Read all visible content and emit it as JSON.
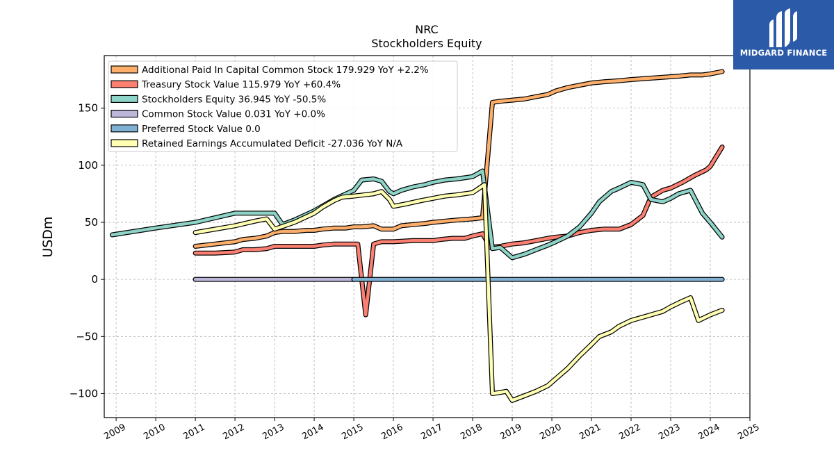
{
  "chart_data": {
    "type": "line",
    "title": "NRC",
    "subtitle": "Stockholders  Equity",
    "ylabel": "USDm",
    "xlabel": "",
    "xlim": [
      2008.7,
      2025.0
    ],
    "ylim": [
      -121,
      196
    ],
    "grid": true,
    "legend_position": "top-left",
    "x_ticks": [
      "2009",
      "2010",
      "2011",
      "2012",
      "2013",
      "2014",
      "2015",
      "2016",
      "2017",
      "2018",
      "2019",
      "2020",
      "2021",
      "2022",
      "2023",
      "2024",
      "2025"
    ],
    "y_ticks": [
      -100,
      -50,
      0,
      50,
      100,
      150
    ],
    "y_tick_labels": [
      "−100",
      "−50",
      "0",
      "50",
      "100",
      "150"
    ],
    "series": [
      {
        "name": "Additional Paid In Capital Common Stock",
        "legend": "Additional Paid In Capital Common Stock  179.929 YoY +2.2%",
        "color": "#fdae6b",
        "points": [
          [
            2011.0,
            29
          ],
          [
            2011.5,
            31
          ],
          [
            2012.0,
            33
          ],
          [
            2012.2,
            35
          ],
          [
            2012.5,
            36
          ],
          [
            2012.8,
            38
          ],
          [
            2013.0,
            41
          ],
          [
            2013.2,
            42
          ],
          [
            2013.5,
            42
          ],
          [
            2013.8,
            43
          ],
          [
            2014.0,
            43
          ],
          [
            2014.2,
            44
          ],
          [
            2014.5,
            45
          ],
          [
            2014.8,
            45
          ],
          [
            2015.0,
            46
          ],
          [
            2015.2,
            46
          ],
          [
            2015.5,
            47
          ],
          [
            2015.7,
            44
          ],
          [
            2016.0,
            44
          ],
          [
            2016.2,
            47
          ],
          [
            2016.5,
            48
          ],
          [
            2016.8,
            49
          ],
          [
            2017.0,
            50
          ],
          [
            2017.3,
            51
          ],
          [
            2017.6,
            52
          ],
          [
            2018.0,
            53
          ],
          [
            2018.25,
            54
          ],
          [
            2018.5,
            155
          ],
          [
            2018.7,
            156
          ],
          [
            2019.0,
            157
          ],
          [
            2019.3,
            158
          ],
          [
            2019.6,
            160
          ],
          [
            2019.9,
            162
          ],
          [
            2020.1,
            165
          ],
          [
            2020.4,
            168
          ],
          [
            2020.7,
            170
          ],
          [
            2021.0,
            172
          ],
          [
            2021.3,
            173
          ],
          [
            2021.7,
            174
          ],
          [
            2022.0,
            175
          ],
          [
            2022.4,
            176
          ],
          [
            2022.8,
            177
          ],
          [
            2023.2,
            178
          ],
          [
            2023.5,
            179
          ],
          [
            2023.8,
            179
          ],
          [
            2024.0,
            180
          ],
          [
            2024.3,
            182
          ]
        ]
      },
      {
        "name": "Treasury Stock Value",
        "legend": "Treasury Stock Value  115.979 YoY +60.4%",
        "color": "#fb8072",
        "points": [
          [
            2011.0,
            23
          ],
          [
            2011.5,
            23
          ],
          [
            2012.0,
            24
          ],
          [
            2012.2,
            26
          ],
          [
            2012.5,
            26
          ],
          [
            2012.8,
            27
          ],
          [
            2013.0,
            29
          ],
          [
            2013.5,
            29
          ],
          [
            2014.0,
            29
          ],
          [
            2014.2,
            30
          ],
          [
            2014.5,
            31
          ],
          [
            2014.9,
            31
          ],
          [
            2015.1,
            31
          ],
          [
            2015.3,
            -31
          ],
          [
            2015.5,
            31
          ],
          [
            2015.7,
            33
          ],
          [
            2016.0,
            33
          ],
          [
            2016.5,
            34
          ],
          [
            2017.0,
            34
          ],
          [
            2017.2,
            35
          ],
          [
            2017.5,
            36
          ],
          [
            2017.8,
            36
          ],
          [
            2018.0,
            38
          ],
          [
            2018.25,
            40
          ],
          [
            2018.45,
            28
          ],
          [
            2018.7,
            29
          ],
          [
            2019.0,
            31
          ],
          [
            2019.3,
            32
          ],
          [
            2019.6,
            34
          ],
          [
            2019.9,
            36
          ],
          [
            2020.1,
            37
          ],
          [
            2020.4,
            38
          ],
          [
            2020.7,
            41
          ],
          [
            2021.0,
            43
          ],
          [
            2021.3,
            44
          ],
          [
            2021.7,
            44
          ],
          [
            2022.0,
            48
          ],
          [
            2022.3,
            56
          ],
          [
            2022.5,
            72
          ],
          [
            2022.8,
            78
          ],
          [
            2023.0,
            80
          ],
          [
            2023.3,
            85
          ],
          [
            2023.6,
            91
          ],
          [
            2023.9,
            96
          ],
          [
            2024.0,
            99
          ],
          [
            2024.3,
            116
          ]
        ]
      },
      {
        "name": "Stockholders Equity",
        "legend": "Stockholders Equity  36.945 YoY -50.5%",
        "color": "#8dd3c7",
        "points": [
          [
            2008.9,
            39
          ],
          [
            2010.0,
            45
          ],
          [
            2011.0,
            50
          ],
          [
            2011.5,
            54
          ],
          [
            2012.0,
            58
          ],
          [
            2012.5,
            58
          ],
          [
            2013.0,
            58
          ],
          [
            2013.2,
            48
          ],
          [
            2013.5,
            52
          ],
          [
            2014.0,
            60
          ],
          [
            2014.5,
            70
          ],
          [
            2015.0,
            78
          ],
          [
            2015.2,
            87
          ],
          [
            2015.5,
            88
          ],
          [
            2015.7,
            86
          ],
          [
            2015.9,
            77
          ],
          [
            2016.0,
            75
          ],
          [
            2016.2,
            78
          ],
          [
            2016.5,
            81
          ],
          [
            2016.8,
            83
          ],
          [
            2017.0,
            85
          ],
          [
            2017.3,
            87
          ],
          [
            2017.6,
            88
          ],
          [
            2018.0,
            90
          ],
          [
            2018.25,
            95
          ],
          [
            2018.5,
            27
          ],
          [
            2018.7,
            28
          ],
          [
            2019.0,
            19
          ],
          [
            2019.3,
            22
          ],
          [
            2019.6,
            26
          ],
          [
            2019.9,
            30
          ],
          [
            2020.1,
            33
          ],
          [
            2020.4,
            38
          ],
          [
            2020.7,
            46
          ],
          [
            2021.0,
            58
          ],
          [
            2021.2,
            68
          ],
          [
            2021.5,
            77
          ],
          [
            2021.7,
            80
          ],
          [
            2022.0,
            85
          ],
          [
            2022.3,
            83
          ],
          [
            2022.5,
            70
          ],
          [
            2022.8,
            68
          ],
          [
            2023.0,
            71
          ],
          [
            2023.2,
            75
          ],
          [
            2023.5,
            78
          ],
          [
            2023.8,
            58
          ],
          [
            2024.0,
            50
          ],
          [
            2024.3,
            37
          ]
        ]
      },
      {
        "name": "Common Stock Value",
        "legend": "Common Stock Value  0.031 YoY +0.0%",
        "color": "#bcb6d9",
        "points": [
          [
            2011.0,
            0
          ],
          [
            2015.0,
            0
          ]
        ]
      },
      {
        "name": "Preferred Stock Value",
        "legend": "Preferred Stock Value  0.0",
        "color": "#80b1d3",
        "points": [
          [
            2015.0,
            0
          ],
          [
            2024.3,
            0
          ]
        ]
      },
      {
        "name": "Retained Earnings Accumulated Deficit",
        "legend": "Retained Earnings Accumulated Deficit  -27.036 YoY N/A",
        "color": "#ffffb3",
        "points": [
          [
            2011.0,
            41
          ],
          [
            2011.5,
            44
          ],
          [
            2012.0,
            47
          ],
          [
            2012.5,
            51
          ],
          [
            2012.8,
            53
          ],
          [
            2013.0,
            44
          ],
          [
            2013.5,
            50
          ],
          [
            2014.0,
            58
          ],
          [
            2014.2,
            63
          ],
          [
            2014.5,
            69
          ],
          [
            2014.7,
            72
          ],
          [
            2015.0,
            73
          ],
          [
            2015.5,
            75
          ],
          [
            2015.7,
            77
          ],
          [
            2015.9,
            70
          ],
          [
            2016.0,
            64
          ],
          [
            2016.3,
            66
          ],
          [
            2016.7,
            69
          ],
          [
            2017.0,
            71
          ],
          [
            2017.3,
            73
          ],
          [
            2017.6,
            74
          ],
          [
            2018.0,
            76
          ],
          [
            2018.3,
            83
          ],
          [
            2018.5,
            -100
          ],
          [
            2018.7,
            -99
          ],
          [
            2018.85,
            -98
          ],
          [
            2019.0,
            -106
          ],
          [
            2019.3,
            -102
          ],
          [
            2019.6,
            -98
          ],
          [
            2019.9,
            -93
          ],
          [
            2020.1,
            -87
          ],
          [
            2020.4,
            -78
          ],
          [
            2020.7,
            -67
          ],
          [
            2021.0,
            -57
          ],
          [
            2021.2,
            -50
          ],
          [
            2021.5,
            -46
          ],
          [
            2021.7,
            -41
          ],
          [
            2022.0,
            -36
          ],
          [
            2022.3,
            -33
          ],
          [
            2022.8,
            -28
          ],
          [
            2023.0,
            -24
          ],
          [
            2023.3,
            -19
          ],
          [
            2023.5,
            -16
          ],
          [
            2023.7,
            -36
          ],
          [
            2024.0,
            -31
          ],
          [
            2024.3,
            -27
          ]
        ]
      }
    ]
  },
  "logo": {
    "name": "MIDGARD FINANCE"
  }
}
